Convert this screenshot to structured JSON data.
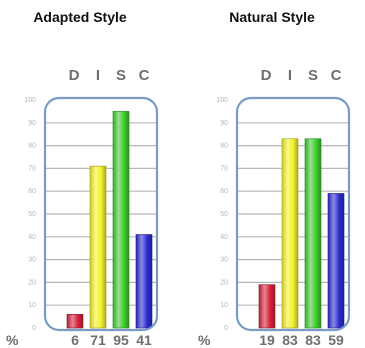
{
  "chart_data": [
    {
      "type": "bar",
      "title": "Adapted Style",
      "categories": [
        "D",
        "I",
        "S",
        "C"
      ],
      "values": [
        6,
        71,
        95,
        41
      ],
      "value_labels": [
        "6",
        "71",
        "95",
        "41"
      ],
      "unit_label": "%",
      "ylim": [
        0,
        100
      ],
      "yticks": [
        "0",
        "10",
        "20",
        "30",
        "40",
        "50",
        "60",
        "70",
        "80",
        "90",
        "100"
      ],
      "grid": true,
      "legend": "none"
    },
    {
      "type": "bar",
      "title": "Natural Style",
      "categories": [
        "D",
        "I",
        "S",
        "C"
      ],
      "values": [
        19,
        83,
        83,
        59
      ],
      "value_labels": [
        "19",
        "83",
        "83",
        "59"
      ],
      "unit_label": "%",
      "ylim": [
        0,
        100
      ],
      "yticks": [
        "0",
        "10",
        "20",
        "30",
        "40",
        "50",
        "60",
        "70",
        "80",
        "90",
        "100"
      ],
      "grid": true,
      "legend": "none"
    }
  ],
  "colors": {
    "D": "#d6213a",
    "I": "#f2f02a",
    "S": "#3ccc2e",
    "C": "#2b2bd0",
    "frame": "#7a9cc4",
    "grid": "#b7b7b7"
  }
}
